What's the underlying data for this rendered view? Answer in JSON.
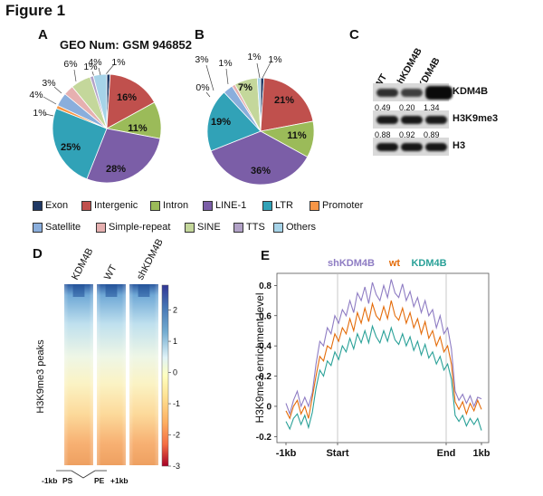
{
  "figure_title": "Figure 1",
  "panels": {
    "a": "A",
    "b": "B",
    "c": "C",
    "d": "D",
    "e": "E"
  },
  "geo_label": "GEO Num: GSM 946852",
  "colors": {
    "Exon": "#1f3864",
    "Intergenic": "#c0504d",
    "Intron": "#9bbb59",
    "LINE-1": "#7b5ea7",
    "LTR": "#31a2b7",
    "Promoter": "#f79646",
    "Satellite": "#8aaedc",
    "Simple-repeat": "#e6b0b0",
    "SINE": "#c4d79b",
    "TTS": "#b2a2c7",
    "Others": "#a6d3e8"
  },
  "legend": [
    "Exon",
    "Intergenic",
    "Intron",
    "LINE-1",
    "LTR",
    "Promoter",
    "Satellite",
    "Simple-repeat",
    "SINE",
    "TTS",
    "Others"
  ],
  "chart_data": [
    {
      "type": "pie",
      "panel": "A",
      "title": "GEO Num: GSM 946852",
      "slices": [
        {
          "name": "Exon",
          "value": 1,
          "label": "1%"
        },
        {
          "name": "Intergenic",
          "value": 16,
          "label": "16%"
        },
        {
          "name": "Intron",
          "value": 11,
          "label": "11%"
        },
        {
          "name": "LINE-1",
          "value": 28,
          "label": "28%"
        },
        {
          "name": "LTR",
          "value": 25,
          "label": "25%"
        },
        {
          "name": "Promoter",
          "value": 1,
          "label": "1%"
        },
        {
          "name": "Satellite",
          "value": 4,
          "label": "4%"
        },
        {
          "name": "Simple-repeat",
          "value": 3,
          "label": "3%"
        },
        {
          "name": "SINE",
          "value": 6,
          "label": "6%"
        },
        {
          "name": "TTS",
          "value": 1,
          "label": "1%"
        },
        {
          "name": "Others",
          "value": 4,
          "label": "4%"
        }
      ]
    },
    {
      "type": "pie",
      "panel": "B",
      "slices": [
        {
          "name": "Exon",
          "value": 1,
          "label": "1%"
        },
        {
          "name": "Intergenic",
          "value": 21,
          "label": "21%"
        },
        {
          "name": "Intron",
          "value": 11,
          "label": "11%"
        },
        {
          "name": "LINE-1",
          "value": 36,
          "label": "36%"
        },
        {
          "name": "LTR",
          "value": 19,
          "label": "19%"
        },
        {
          "name": "Promoter",
          "value": 0,
          "label": "0%"
        },
        {
          "name": "Satellite",
          "value": 3,
          "label": "3%"
        },
        {
          "name": "Simple-repeat",
          "value": 1,
          "label": "1%"
        },
        {
          "name": "SINE",
          "value": 7,
          "label": "7%"
        },
        {
          "name": "TTS",
          "value": 0,
          "label": ""
        },
        {
          "name": "Others",
          "value": 1,
          "label": "1%"
        }
      ]
    },
    {
      "type": "heatmap",
      "panel": "D",
      "columns": [
        "KDM4B",
        "WT",
        "shKDM4B"
      ],
      "ylabel": "H3K9me3  peaks",
      "colorbar_ticks": [
        "2",
        "1",
        "0",
        "-1",
        "-2",
        "-3"
      ],
      "colorbar_range": [
        -3,
        2.8
      ],
      "xlabels": [
        "-1kb",
        "PS",
        "PE",
        "+1kb"
      ]
    },
    {
      "type": "line",
      "panel": "E",
      "ylabel": "H3K9me3 enrichment level",
      "xticks": [
        "-1kb",
        "Start",
        "End",
        "1kb"
      ],
      "yticks": [
        "0.8",
        "0.6",
        "0.4",
        "0.2",
        "0",
        "-0.2"
      ],
      "ylim": [
        -0.24,
        0.88
      ],
      "series": [
        {
          "name": "shKDM4B",
          "color": "#8e7cc3",
          "values": [
            0.02,
            -0.05,
            0.04,
            0.1,
            0.0,
            0.06,
            0.0,
            0.09,
            0.28,
            0.43,
            0.4,
            0.52,
            0.48,
            0.6,
            0.55,
            0.64,
            0.6,
            0.7,
            0.62,
            0.75,
            0.7,
            0.79,
            0.68,
            0.82,
            0.74,
            0.7,
            0.8,
            0.72,
            0.84,
            0.75,
            0.72,
            0.81,
            0.7,
            0.76,
            0.66,
            0.72,
            0.62,
            0.7,
            0.6,
            0.64,
            0.52,
            0.6,
            0.48,
            0.52,
            0.38,
            0.1,
            0.04,
            0.08,
            0.02,
            0.07,
            0.0,
            0.06,
            0.05
          ]
        },
        {
          "name": "wt",
          "color": "#e46c0a",
          "values": [
            -0.03,
            -0.08,
            0.0,
            0.04,
            -0.05,
            0.0,
            -0.08,
            0.06,
            0.2,
            0.33,
            0.3,
            0.4,
            0.38,
            0.48,
            0.43,
            0.52,
            0.48,
            0.58,
            0.5,
            0.62,
            0.55,
            0.65,
            0.56,
            0.68,
            0.6,
            0.57,
            0.66,
            0.58,
            0.7,
            0.6,
            0.57,
            0.65,
            0.55,
            0.62,
            0.52,
            0.58,
            0.48,
            0.56,
            0.45,
            0.5,
            0.4,
            0.46,
            0.36,
            0.4,
            0.28,
            0.03,
            -0.02,
            0.03,
            -0.05,
            0.02,
            -0.03,
            0.04,
            -0.02
          ]
        },
        {
          "name": "KDM4B",
          "color": "#2aa198",
          "values": [
            -0.1,
            -0.15,
            -0.08,
            -0.05,
            -0.12,
            -0.06,
            -0.14,
            -0.04,
            0.12,
            0.24,
            0.2,
            0.3,
            0.27,
            0.36,
            0.31,
            0.4,
            0.36,
            0.45,
            0.38,
            0.48,
            0.42,
            0.5,
            0.42,
            0.53,
            0.46,
            0.42,
            0.5,
            0.43,
            0.52,
            0.44,
            0.41,
            0.48,
            0.4,
            0.46,
            0.37,
            0.43,
            0.34,
            0.41,
            0.32,
            0.36,
            0.28,
            0.33,
            0.24,
            0.28,
            0.18,
            -0.06,
            -0.1,
            -0.06,
            -0.13,
            -0.08,
            -0.12,
            -0.08,
            -0.16
          ]
        }
      ]
    }
  ],
  "blot": {
    "columns": [
      "WT",
      "shKDM4B",
      "KDM4B"
    ],
    "rows": [
      {
        "label": "KDM4B",
        "values": [
          "0.49",
          "0.20",
          "1.34"
        ],
        "intensity": [
          0.55,
          0.35,
          1.0
        ]
      },
      {
        "label": "H3K9me3",
        "values": [
          "0.88",
          "0.92",
          "0.89"
        ],
        "intensity": [
          0.8,
          0.82,
          0.8
        ]
      },
      {
        "label": "H3",
        "values": [],
        "intensity": [
          0.85,
          0.85,
          0.85
        ]
      }
    ]
  }
}
